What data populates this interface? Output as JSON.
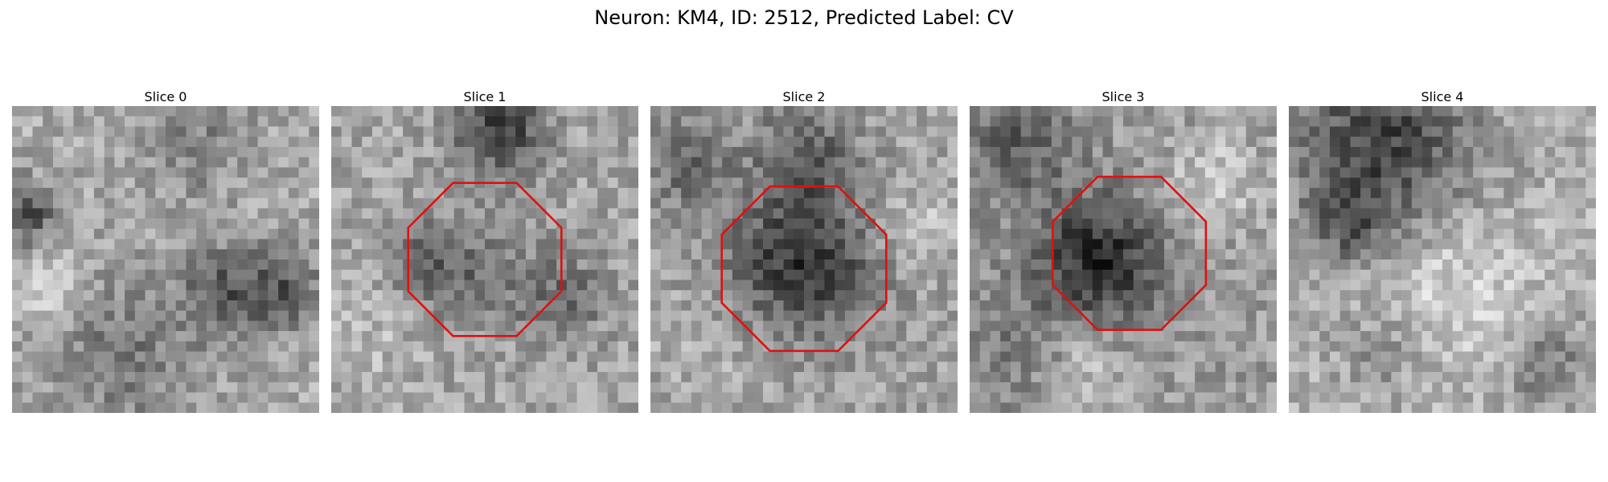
{
  "figure": {
    "title": "Neuron: KM4, ID: 2512, Predicted Label: CV"
  },
  "slices": [
    {
      "label": "Slice 0",
      "has_outline": false
    },
    {
      "label": "Slice 1",
      "has_outline": true
    },
    {
      "label": "Slice 2",
      "has_outline": true
    },
    {
      "label": "Slice 3",
      "has_outline": true
    },
    {
      "label": "Slice 4",
      "has_outline": false
    }
  ],
  "colors": {
    "outline": "#e01010",
    "background": "#ffffff"
  }
}
